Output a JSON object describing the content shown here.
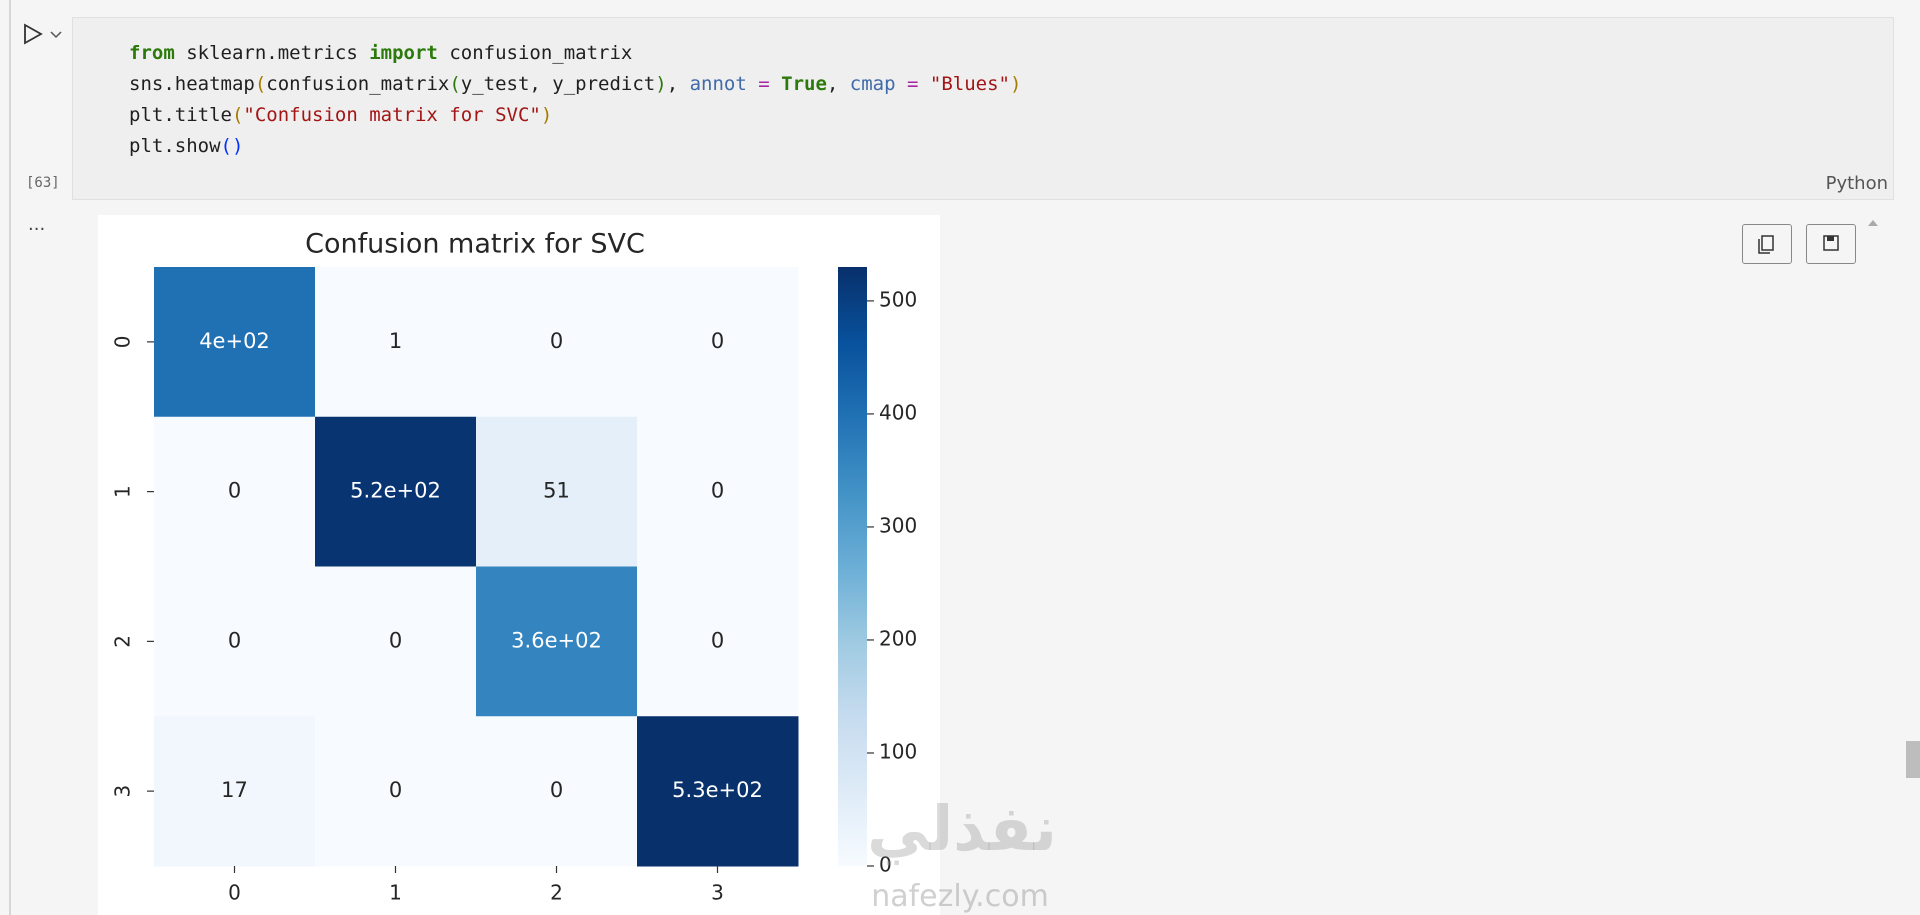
{
  "cell": {
    "lines": [
      [
        {
          "text": "from",
          "color": "#2b7a0b",
          "bold": true
        },
        {
          "text": " sklearn.metrics ",
          "color": "#1f1f1f"
        },
        {
          "text": "import",
          "color": "#2b7a0b",
          "bold": true
        },
        {
          "text": " confusion_matrix",
          "color": "#1f1f1f"
        }
      ],
      [
        {
          "text": "sns.heatmap",
          "color": "#1f1f1f"
        },
        {
          "text": "(",
          "color": "#a67c00"
        },
        {
          "text": "confusion_matrix",
          "color": "#1f1f1f"
        },
        {
          "text": "(",
          "color": "#2b7a0b"
        },
        {
          "text": "y_test, y_predict",
          "color": "#1f1f1f"
        },
        {
          "text": ")",
          "color": "#2b7a0b"
        },
        {
          "text": ", ",
          "color": "#1f1f1f"
        },
        {
          "text": "annot",
          "color": "#3f6ba8"
        },
        {
          "text": " = ",
          "color": "#a626a4"
        },
        {
          "text": "True",
          "color": "#2b7a0b",
          "bold": true
        },
        {
          "text": ", ",
          "color": "#1f1f1f"
        },
        {
          "text": "cmap",
          "color": "#3f6ba8"
        },
        {
          "text": " = ",
          "color": "#a626a4"
        },
        {
          "text": "\"Blues\"",
          "color": "#a31515"
        },
        {
          "text": ")",
          "color": "#a67c00"
        }
      ],
      [
        {
          "text": "plt.title",
          "color": "#1f1f1f"
        },
        {
          "text": "(",
          "color": "#a67c00"
        },
        {
          "text": "\"Confusion matrix for SVC\"",
          "color": "#a31515"
        },
        {
          "text": ")",
          "color": "#a67c00"
        }
      ],
      [
        {
          "text": "plt.show",
          "color": "#1f1f1f"
        },
        {
          "text": "()",
          "color": "#0431fa"
        }
      ]
    ],
    "execution_count": "[63]",
    "language": "Python"
  },
  "output": {
    "ellipsis": "..."
  },
  "chart_data": {
    "type": "heatmap",
    "title": "Confusion matrix for SVC",
    "x_categories": [
      "0",
      "1",
      "2",
      "3"
    ],
    "y_categories": [
      "0",
      "1",
      "2",
      "3"
    ],
    "values": [
      [
        400,
        1,
        0,
        0
      ],
      [
        0,
        520,
        51,
        0
      ],
      [
        0,
        0,
        360,
        0
      ],
      [
        17,
        0,
        0,
        530
      ]
    ],
    "value_labels": [
      [
        "4e+02",
        "1",
        "0",
        "0"
      ],
      [
        "0",
        "5.2e+02",
        "51",
        "0"
      ],
      [
        "0",
        "0",
        "3.6e+02",
        "0"
      ],
      [
        "17",
        "0",
        "0",
        "5.3e+02"
      ]
    ],
    "clim": [
      0,
      530
    ],
    "cticks": [
      0,
      100,
      200,
      300,
      400,
      500
    ],
    "colormap": [
      "#f7fbff",
      "#deebf7",
      "#c6dbef",
      "#9ecae1",
      "#6baed6",
      "#4292c6",
      "#2171b5",
      "#08519c",
      "#08306b"
    ]
  },
  "watermark": {
    "arabic": "نفذلي",
    "latin": "nafezly.com"
  }
}
